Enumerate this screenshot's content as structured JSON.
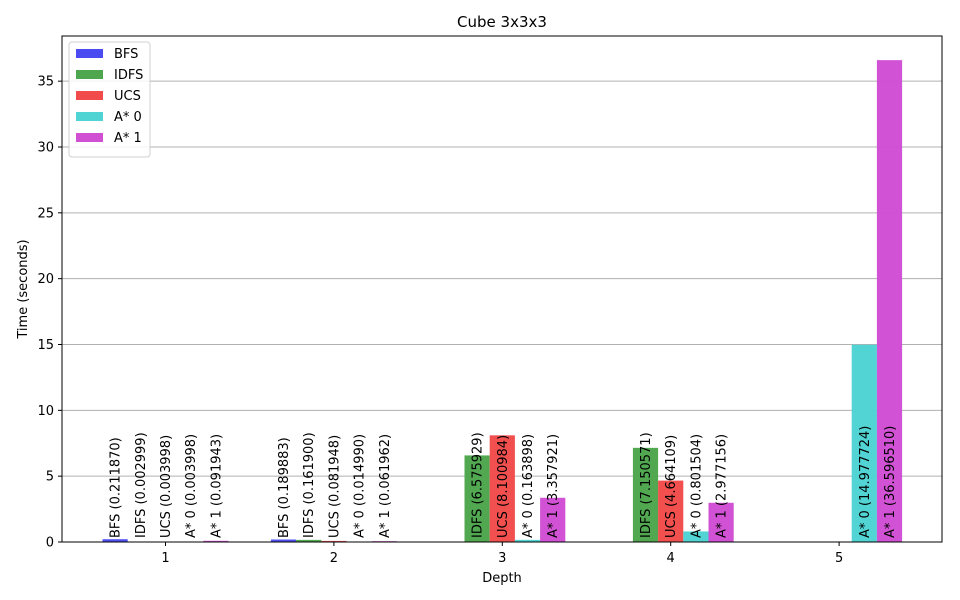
{
  "chart_data": {
    "type": "bar",
    "title": "Cube 3x3x3",
    "xlabel": "Depth",
    "ylabel": "Time (seconds)",
    "categories": [
      "1",
      "2",
      "3",
      "4",
      "5"
    ],
    "ylim": [
      0,
      38.43
    ],
    "yticks": [
      0,
      5,
      10,
      15,
      20,
      25,
      30,
      35
    ],
    "grid": "y",
    "legend_position": "top-left",
    "series": [
      {
        "name": "BFS",
        "color": "#4b4bf2",
        "values": [
          0.21187,
          0.189883,
          null,
          null,
          null
        ],
        "labels": [
          "BFS (0.211870)",
          "BFS (0.189883)",
          null,
          null,
          null
        ]
      },
      {
        "name": "IDFS",
        "color": "#4ea64e",
        "values": [
          0.002999,
          0.1619,
          6.575929,
          7.150571,
          null
        ],
        "labels": [
          "IDFS (0.002999)",
          "IDFS (0.161900)",
          "IDFS (6.575929)",
          "IDFS (7.150571)",
          null
        ]
      },
      {
        "name": "UCS",
        "color": "#f24b4b",
        "values": [
          0.003998,
          0.081948,
          8.100984,
          4.664109,
          null
        ],
        "labels": [
          "UCS (0.003998)",
          "UCS (0.081948)",
          "UCS (8.100984)",
          "UCS (4.664109)",
          null
        ]
      },
      {
        "name": "A* 0",
        "color": "#4fd3d3",
        "values": [
          0.003998,
          0.01499,
          0.163898,
          0.801504,
          14.977724
        ],
        "labels": [
          "A* 0 (0.003998)",
          "A* 0 (0.014990)",
          "A* 0 (0.163898)",
          "A* 0 (0.801504)",
          "A* 0 (14.977724)"
        ]
      },
      {
        "name": "A* 1",
        "color": "#d04fd3",
        "values": [
          0.091943,
          0.061962,
          3.357921,
          2.977156,
          36.59651
        ],
        "labels": [
          "A* 1 (0.091943)",
          "A* 1 (0.061962)",
          "A* 1 (3.357921)",
          "A* 1 (2.977156)",
          "A* 1 (36.596510)"
        ]
      }
    ]
  }
}
